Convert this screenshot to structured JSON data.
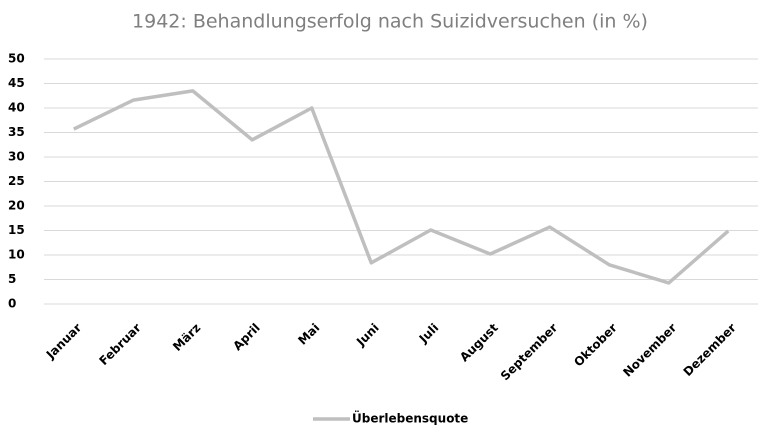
{
  "chart_data": {
    "type": "line",
    "title": "1942: Behandlungserfolg nach Suizidversuchen (in %)",
    "categories": [
      "Januar",
      "Februar",
      "März",
      "April",
      "Mai",
      "Juni",
      "Juli",
      "August",
      "September",
      "Oktober",
      "November",
      "Dezember"
    ],
    "series": [
      {
        "name": "Überlebensquote",
        "color": "#bfbfbf",
        "values": [
          35.7,
          41.6,
          43.5,
          33.5,
          40,
          8.4,
          15.1,
          10.2,
          15.7,
          8,
          4.3,
          14.9
        ]
      }
    ],
    "ylim": [
      0,
      50
    ],
    "yticks": [
      0,
      5,
      10,
      15,
      20,
      25,
      30,
      35,
      40,
      45,
      50
    ],
    "grid": true,
    "legend": "bottom"
  }
}
